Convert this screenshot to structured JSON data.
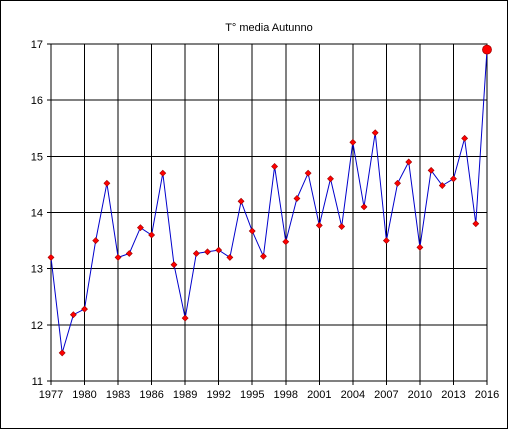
{
  "chart_data": {
    "type": "line",
    "title": "T° media Autunno",
    "xlabel": "",
    "ylabel": "",
    "xlim": [
      1977,
      2016
    ],
    "ylim": [
      11,
      17
    ],
    "y_ticks": [
      11,
      12,
      13,
      14,
      15,
      16,
      17
    ],
    "x_ticks": [
      1977,
      1980,
      1983,
      1986,
      1989,
      1992,
      1995,
      1998,
      2001,
      2004,
      2007,
      2010,
      2013,
      2016
    ],
    "grid": true,
    "line_color": "#0000cc",
    "marker_color": "#ff0000",
    "highlight_last_point": true,
    "series": [
      {
        "x": [
          1977,
          1978,
          1979,
          1980,
          1981,
          1982,
          1983,
          1984,
          1985,
          1986,
          1987,
          1988,
          1989,
          1990,
          1991,
          1992,
          1993,
          1994,
          1995,
          1996,
          1997,
          1998,
          1999,
          2000,
          2001,
          2002,
          2003,
          2004,
          2005,
          2006,
          2007,
          2008,
          2009,
          2010,
          2011,
          2012,
          2013,
          2014,
          2015,
          2016
        ],
        "values": [
          13.2,
          11.5,
          12.18,
          12.28,
          13.5,
          14.52,
          13.2,
          13.27,
          13.73,
          13.6,
          14.7,
          13.07,
          12.12,
          13.27,
          13.3,
          13.33,
          13.2,
          14.2,
          13.67,
          13.22,
          14.82,
          13.48,
          14.25,
          14.7,
          13.77,
          14.6,
          13.75,
          15.25,
          14.1,
          15.42,
          13.5,
          14.52,
          14.9,
          13.38,
          14.75,
          14.48,
          14.6,
          15.32,
          13.8,
          16.9
        ]
      }
    ]
  }
}
